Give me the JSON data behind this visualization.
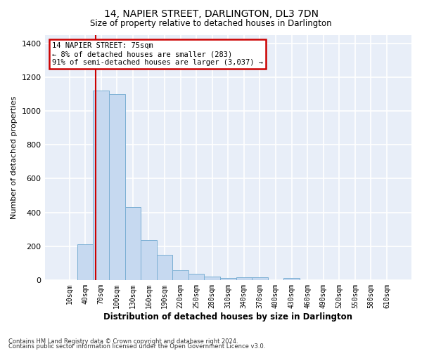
{
  "title": "14, NAPIER STREET, DARLINGTON, DL3 7DN",
  "subtitle": "Size of property relative to detached houses in Darlington",
  "xlabel": "Distribution of detached houses by size in Darlington",
  "ylabel": "Number of detached properties",
  "categories": [
    "10sqm",
    "40sqm",
    "70sqm",
    "100sqm",
    "130sqm",
    "160sqm",
    "190sqm",
    "220sqm",
    "250sqm",
    "280sqm",
    "310sqm",
    "340sqm",
    "370sqm",
    "400sqm",
    "430sqm",
    "460sqm",
    "490sqm",
    "520sqm",
    "550sqm",
    "580sqm",
    "610sqm"
  ],
  "values": [
    0,
    210,
    1120,
    1100,
    430,
    235,
    148,
    57,
    38,
    22,
    10,
    15,
    15,
    0,
    12,
    0,
    0,
    0,
    0,
    0,
    0
  ],
  "bar_color": "#c6d9f0",
  "bar_edge_color": "#7bafd4",
  "vline_color": "#cc0000",
  "annotation_text": "14 NAPIER STREET: 75sqm\n← 8% of detached houses are smaller (283)\n91% of semi-detached houses are larger (3,037) →",
  "annotation_box_color": "#ffffff",
  "annotation_box_edge_color": "#cc0000",
  "ylim": [
    0,
    1450
  ],
  "yticks": [
    0,
    200,
    400,
    600,
    800,
    1000,
    1200,
    1400
  ],
  "background_color": "#e8eef8",
  "grid_color": "#ffffff",
  "footer_line1": "Contains HM Land Registry data © Crown copyright and database right 2024.",
  "footer_line2": "Contains public sector information licensed under the Open Government Licence v3.0."
}
